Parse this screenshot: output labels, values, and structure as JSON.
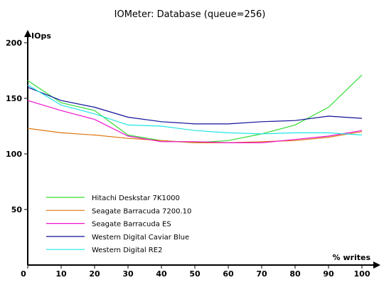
{
  "chart_data": {
    "type": "line",
    "title": "IOMeter: Database (queue=256)",
    "xlabel": "% writes",
    "ylabel": "IOps",
    "x": [
      0,
      10,
      20,
      30,
      40,
      50,
      60,
      70,
      80,
      90,
      100
    ],
    "xlim": [
      0,
      100
    ],
    "ylim": [
      0,
      200
    ],
    "x_ticks": [
      "0",
      "10",
      "20",
      "30",
      "40",
      "50",
      "60",
      "70",
      "80",
      "90",
      "100"
    ],
    "y_ticks": [
      {
        "value": 50,
        "label": "50"
      },
      {
        "value": 100,
        "label": "100"
      },
      {
        "value": 150,
        "label": "150"
      },
      {
        "value": 200,
        "label": "200"
      }
    ],
    "grid": false,
    "legend_position": "bottom-left",
    "series": [
      {
        "name": "Hitachi Deskstar 7K1000",
        "color": "#33dd33",
        "values": [
          166,
          146,
          139,
          117,
          112,
          110,
          112,
          118,
          126,
          142,
          171
        ]
      },
      {
        "name": "Seagate Barracuda 7200.10",
        "color": "#dd7711",
        "values": [
          123,
          119,
          117,
          114,
          112,
          110,
          110,
          111,
          112,
          115,
          120
        ]
      },
      {
        "name": "Seagate Barracuda ES",
        "color": "#ee11cc",
        "values": [
          148,
          139,
          131,
          116,
          111,
          111,
          110,
          110,
          113,
          116,
          121
        ]
      },
      {
        "name": "Western Digital Caviar Blue",
        "color": "#11119a",
        "values": [
          160,
          148,
          142,
          133,
          129,
          127,
          127,
          129,
          130,
          134,
          132
        ]
      },
      {
        "name": "Western Digital RE2",
        "color": "#22e5e5",
        "values": [
          162,
          144,
          136,
          126,
          125,
          121,
          119,
          118,
          119,
          119,
          117
        ]
      }
    ]
  }
}
